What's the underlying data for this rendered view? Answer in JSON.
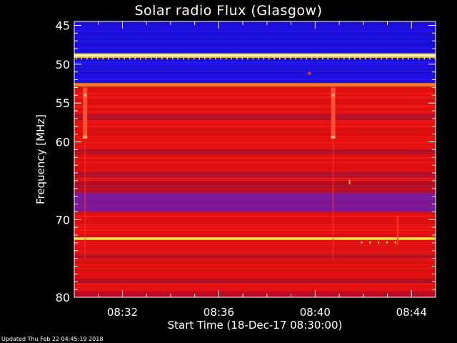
{
  "chart_data": {
    "type": "heatmap",
    "title": "Solar radio Flux (Glasgow)",
    "xlabel": "Start Time (18-Dec-17 08:30:00)",
    "ylabel": "Frequency [MHz]",
    "y_ticks": [
      45,
      50,
      55,
      60,
      70,
      80
    ],
    "y_tick_labels": [
      "45",
      "50",
      "55",
      "60",
      "70",
      "80"
    ],
    "x_ticks_min": [
      2,
      6,
      10,
      14
    ],
    "x_tick_labels": [
      "08:32",
      "08:36",
      "08:40",
      "08:44"
    ],
    "xlim_min": [
      0,
      15
    ],
    "ylim_mhz": [
      44.5,
      80
    ],
    "colors": {
      "background": "#000000",
      "blue": "#1f10e6",
      "red": "#e81010",
      "yellow": "#ffe84a",
      "axes": "#ffffff"
    },
    "bands_mhz": [
      {
        "from": 44.5,
        "to": 46.0,
        "level": "blue"
      },
      {
        "from": 46.0,
        "to": 48.6,
        "level": "blue"
      },
      {
        "from": 48.6,
        "to": 49.2,
        "level": "yellow"
      },
      {
        "from": 49.2,
        "to": 52.4,
        "level": "blue"
      },
      {
        "from": 52.4,
        "to": 52.9,
        "level": "orange"
      },
      {
        "from": 52.9,
        "to": 66.5,
        "level": "red"
      },
      {
        "from": 66.5,
        "to": 69.0,
        "level": "purple"
      },
      {
        "from": 69.0,
        "to": 72.3,
        "level": "red"
      },
      {
        "from": 72.3,
        "to": 72.6,
        "level": "yellow"
      },
      {
        "from": 72.6,
        "to": 80.0,
        "level": "red"
      }
    ],
    "bursts_min": [
      0.45,
      10.75
    ]
  },
  "footer": {
    "updated": "Updated Thu Feb 22 04:45:19 2018"
  }
}
